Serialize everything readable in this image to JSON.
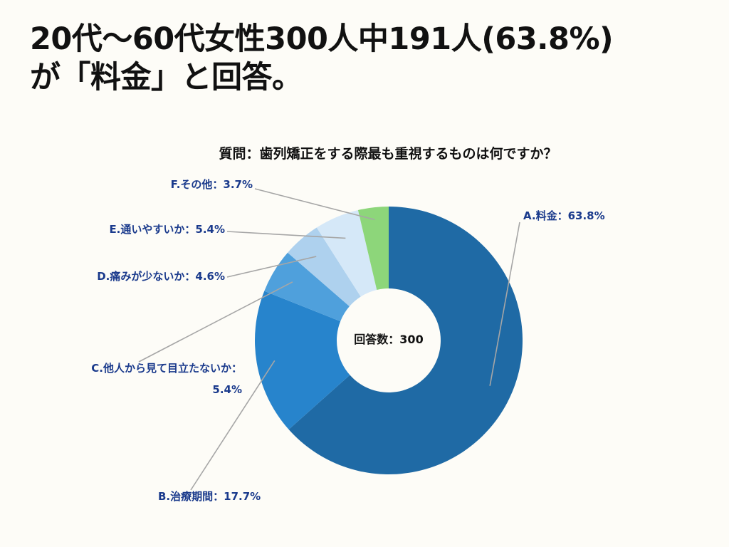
{
  "headline": {
    "line1": "20代〜60代女性300人中191人(63.8%)",
    "line2": "が「料金」と回答。"
  },
  "colors": {
    "background": "#fdfcf7",
    "label_text": "#1a3a8c",
    "leader_line": "#a6a6a6"
  },
  "chart_data": {
    "type": "pie",
    "donut": true,
    "title": "質問：歯列矯正をする際最も重視するものは何ですか？",
    "center_label": "回答数：300",
    "total": 300,
    "slices": [
      {
        "name": "A.料金",
        "value": 63.8,
        "label": "A.料金：63.8%",
        "color": "#1f6aa5"
      },
      {
        "name": "B.治療期間",
        "value": 17.7,
        "label": "B.治療期間：17.7%",
        "color": "#2784cc"
      },
      {
        "name": "C.他人から見て目立たないか",
        "value": 5.4,
        "label_lines": [
          "C.他人から見て目立たないか：",
          "5.4%"
        ],
        "color": "#4fa0dc"
      },
      {
        "name": "D.痛みが少ないか",
        "value": 4.6,
        "label": "D.痛みが少ないか：4.6%",
        "color": "#aed1ee"
      },
      {
        "name": "E.通いやすいか",
        "value": 5.4,
        "label": "E.通いやすいか：5.4%",
        "color": "#d5e8f8"
      },
      {
        "name": "F.その他",
        "value": 3.7,
        "label": "F.その他：3.7%",
        "color": "#8dd67a"
      }
    ]
  }
}
